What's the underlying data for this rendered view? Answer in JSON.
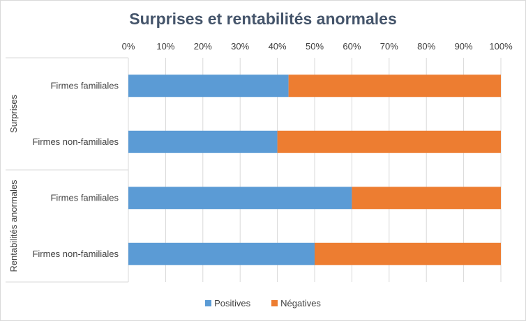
{
  "chart_data": {
    "type": "bar",
    "orientation": "horizontal",
    "stacked": "percent",
    "title": "Surprises et rentabilités anormales",
    "x_ticks": [
      "0%",
      "10%",
      "20%",
      "30%",
      "40%",
      "50%",
      "60%",
      "70%",
      "80%",
      "90%",
      "100%"
    ],
    "xlim": [
      0,
      100
    ],
    "grid": "vertical",
    "legend_position": "bottom",
    "groups": [
      {
        "label": "Surprises",
        "categories": [
          "Firmes familiales",
          "Firmes non-familiales"
        ]
      },
      {
        "label": "Rentabilités anormales",
        "categories": [
          "Firmes familiales",
          "Firmes non-familiales"
        ]
      }
    ],
    "series": [
      {
        "name": "Positives",
        "color": "#5b9bd5",
        "values": [
          43,
          40,
          60,
          50
        ]
      },
      {
        "name": "Négatives",
        "color": "#ed7d31",
        "values": [
          57,
          60,
          40,
          50
        ]
      }
    ]
  }
}
